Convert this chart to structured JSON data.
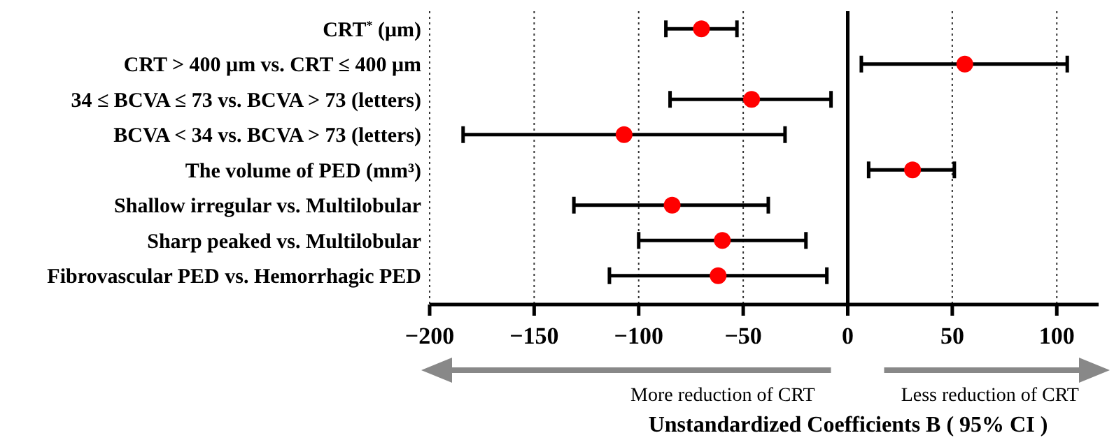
{
  "chart_data": {
    "type": "scatter",
    "orientation": "horizontal",
    "xlabel": "Unstandardized Coefficients B ( 95% CI )",
    "categories": [
      "CRT$^{*}$ (μm)",
      "CRT > 400 μm vs. CRT ≤ 400 μm",
      "34 ≤  BCVA ≤  73 vs. BCVA > 73 (letters)",
      "BCVA < 34 vs. BCVA > 73 (letters)",
      "The volume of PED (mm³)",
      "Shallow irregular vs. Multilobular",
      "Sharp peaked vs. Multilobular",
      "Fibrovascular PED vs. Hemorrhagic PED"
    ],
    "series": [
      {
        "color": "#ff0000",
        "values": [
          -70,
          56,
          -46,
          -107,
          31,
          -84,
          -60,
          -62
        ],
        "errors": [
          [
            -87,
            -53
          ],
          [
            6.5,
            105
          ],
          [
            -85,
            -8
          ],
          [
            -184,
            -30
          ],
          [
            10,
            51
          ],
          [
            -131,
            -38
          ],
          [
            -100,
            -20
          ],
          [
            -114,
            -10
          ]
        ]
      }
    ],
    "xlim": [
      -200,
      120
    ],
    "xticks": [
      {
        "value": -200,
        "label": "−200"
      },
      {
        "value": -150,
        "label": "−150"
      },
      {
        "value": -100,
        "label": "−100"
      },
      {
        "value": -50,
        "label": "−50"
      },
      0,
      50,
      100
    ],
    "grid": "x",
    "marker": "circle",
    "ref_lines": [
      {
        "axis": "x",
        "value": 0,
        "color": "#000000",
        "line_style": "solid"
      }
    ],
    "annotations": [
      "More reduction of CRT",
      "Less reduction of CRT"
    ]
  }
}
